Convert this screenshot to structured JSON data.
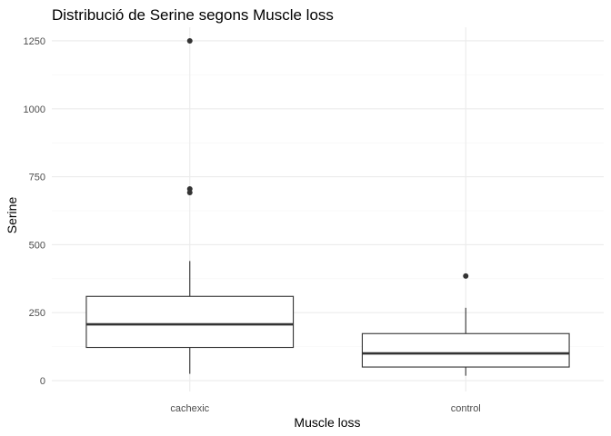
{
  "chart_data": {
    "type": "box",
    "title": "Distribució de Serine segons Muscle loss",
    "xlabel": "Muscle loss",
    "ylabel": "Serine",
    "ylim": [
      -40,
      1300
    ],
    "yticks": [
      0,
      250,
      500,
      750,
      1000,
      1250
    ],
    "grid": true,
    "categories": [
      "cachexic",
      "control"
    ],
    "boxes": [
      {
        "category": "cachexic",
        "lower_whisker": 25,
        "q1": 122,
        "median": 207,
        "q3": 310,
        "upper_whisker": 440,
        "outliers": [
          1250,
          705,
          692
        ]
      },
      {
        "category": "control",
        "lower_whisker": 18,
        "q1": 50,
        "median": 100,
        "q3": 173,
        "upper_whisker": 268,
        "outliers": [
          385
        ]
      }
    ],
    "colors": {
      "box_fill": "#ffffff",
      "line": "#333333",
      "grid": "#ebebeb"
    }
  }
}
